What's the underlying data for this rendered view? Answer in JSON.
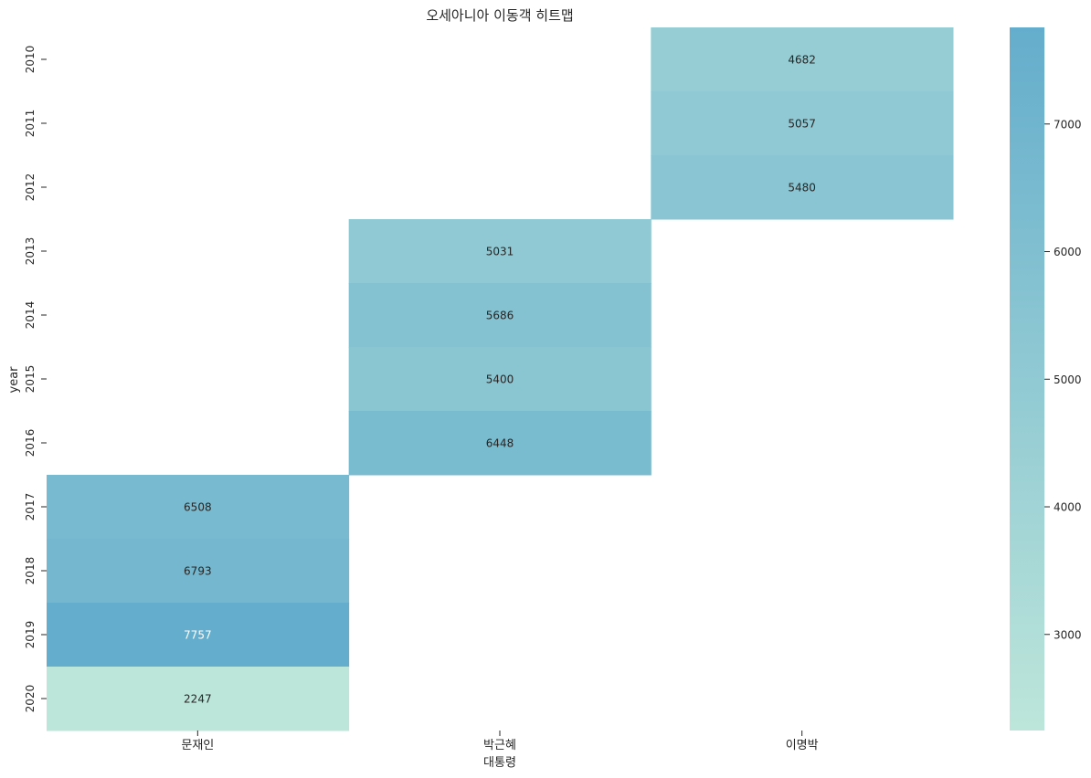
{
  "chart_data": {
    "type": "heatmap",
    "title": "오세아니아 이동객 히트맵",
    "xlabel": "대통령",
    "ylabel": "year",
    "columns": [
      "문재인",
      "박근혜",
      "이명박"
    ],
    "rows": [
      "2010",
      "2011",
      "2012",
      "2013",
      "2014",
      "2015",
      "2016",
      "2017",
      "2018",
      "2019",
      "2020"
    ],
    "values": [
      [
        null,
        null,
        4682
      ],
      [
        null,
        null,
        5057
      ],
      [
        null,
        null,
        5480
      ],
      [
        null,
        5031,
        null
      ],
      [
        null,
        5686,
        null
      ],
      [
        null,
        5400,
        null
      ],
      [
        null,
        6448,
        null
      ],
      [
        6508,
        null,
        null
      ],
      [
        6793,
        null,
        null
      ],
      [
        7757,
        null,
        null
      ],
      [
        2247,
        null,
        null
      ]
    ],
    "colorbar": {
      "min": 2247,
      "max": 7757,
      "ticks": [
        3000,
        4000,
        5000,
        6000,
        7000
      ],
      "color_low": "#bde6da",
      "color_high": "#64adcc"
    },
    "annotation_colors": {
      "dark": "#262626",
      "light": "#ffffff"
    }
  }
}
